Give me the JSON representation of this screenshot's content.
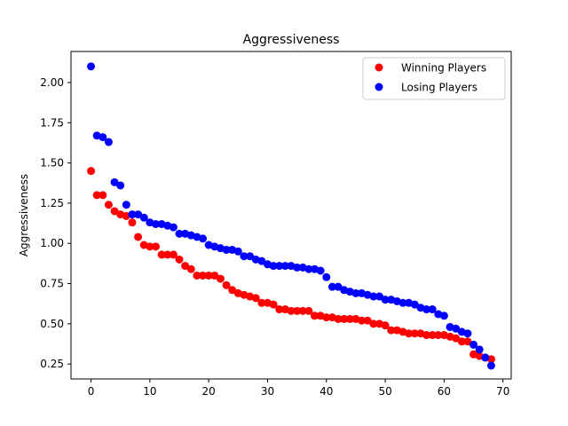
{
  "chart_data": {
    "type": "scatter",
    "title": "Aggressiveness",
    "xlabel": "",
    "ylabel": "Aggressiveness",
    "xlim": [
      -3.4,
      71.4
    ],
    "ylim": [
      0.157,
      2.193
    ],
    "xticks": [
      0,
      10,
      20,
      30,
      40,
      50,
      60,
      70
    ],
    "yticks": [
      0.25,
      0.5,
      0.75,
      1.0,
      1.25,
      1.5,
      1.75,
      2.0
    ],
    "xtick_labels": [
      "0",
      "10",
      "20",
      "30",
      "40",
      "50",
      "60",
      "70"
    ],
    "ytick_labels": [
      "0.25",
      "0.50",
      "0.75",
      "1.00",
      "1.25",
      "1.50",
      "1.75",
      "2.00"
    ],
    "grid": false,
    "legend_position": "top-right",
    "series": [
      {
        "name": "Winning Players",
        "color": "#ff0000",
        "x": [
          0,
          1,
          2,
          3,
          4,
          5,
          6,
          7,
          8,
          9,
          10,
          11,
          12,
          13,
          14,
          15,
          16,
          17,
          18,
          19,
          20,
          21,
          22,
          23,
          24,
          25,
          26,
          27,
          28,
          29,
          30,
          31,
          32,
          33,
          34,
          35,
          36,
          37,
          38,
          39,
          40,
          41,
          42,
          43,
          44,
          45,
          46,
          47,
          48,
          49,
          50,
          51,
          52,
          53,
          54,
          55,
          56,
          57,
          58,
          59,
          60,
          61,
          62,
          63,
          64,
          65,
          66,
          67,
          68
        ],
        "y": [
          1.45,
          1.3,
          1.3,
          1.24,
          1.2,
          1.18,
          1.17,
          1.13,
          1.04,
          0.99,
          0.98,
          0.98,
          0.93,
          0.93,
          0.93,
          0.9,
          0.86,
          0.84,
          0.8,
          0.8,
          0.8,
          0.8,
          0.78,
          0.74,
          0.71,
          0.69,
          0.68,
          0.67,
          0.66,
          0.63,
          0.63,
          0.62,
          0.59,
          0.59,
          0.58,
          0.58,
          0.58,
          0.58,
          0.55,
          0.55,
          0.54,
          0.54,
          0.53,
          0.53,
          0.53,
          0.53,
          0.52,
          0.52,
          0.5,
          0.5,
          0.49,
          0.46,
          0.46,
          0.45,
          0.44,
          0.44,
          0.44,
          0.43,
          0.43,
          0.43,
          0.43,
          0.42,
          0.41,
          0.39,
          0.39,
          0.31,
          0.3,
          0.29,
          0.28
        ]
      },
      {
        "name": "Losing Players",
        "color": "#0000ff",
        "x": [
          0,
          1,
          2,
          3,
          4,
          5,
          6,
          7,
          8,
          9,
          10,
          11,
          12,
          13,
          14,
          15,
          16,
          17,
          18,
          19,
          20,
          21,
          22,
          23,
          24,
          25,
          26,
          27,
          28,
          29,
          30,
          31,
          32,
          33,
          34,
          35,
          36,
          37,
          38,
          39,
          40,
          41,
          42,
          43,
          44,
          45,
          46,
          47,
          48,
          49,
          50,
          51,
          52,
          53,
          54,
          55,
          56,
          57,
          58,
          59,
          60,
          61,
          62,
          63,
          64,
          65,
          66,
          67,
          68
        ],
        "y": [
          2.1,
          1.67,
          1.66,
          1.63,
          1.38,
          1.36,
          1.24,
          1.18,
          1.18,
          1.16,
          1.13,
          1.12,
          1.12,
          1.11,
          1.1,
          1.06,
          1.06,
          1.05,
          1.04,
          1.03,
          0.99,
          0.98,
          0.97,
          0.96,
          0.96,
          0.95,
          0.92,
          0.92,
          0.9,
          0.89,
          0.87,
          0.86,
          0.86,
          0.86,
          0.86,
          0.85,
          0.85,
          0.84,
          0.84,
          0.83,
          0.79,
          0.73,
          0.73,
          0.71,
          0.7,
          0.69,
          0.69,
          0.68,
          0.67,
          0.67,
          0.65,
          0.65,
          0.64,
          0.63,
          0.63,
          0.62,
          0.6,
          0.59,
          0.59,
          0.56,
          0.55,
          0.48,
          0.47,
          0.45,
          0.44,
          0.37,
          0.34,
          0.29,
          0.24
        ]
      }
    ]
  }
}
